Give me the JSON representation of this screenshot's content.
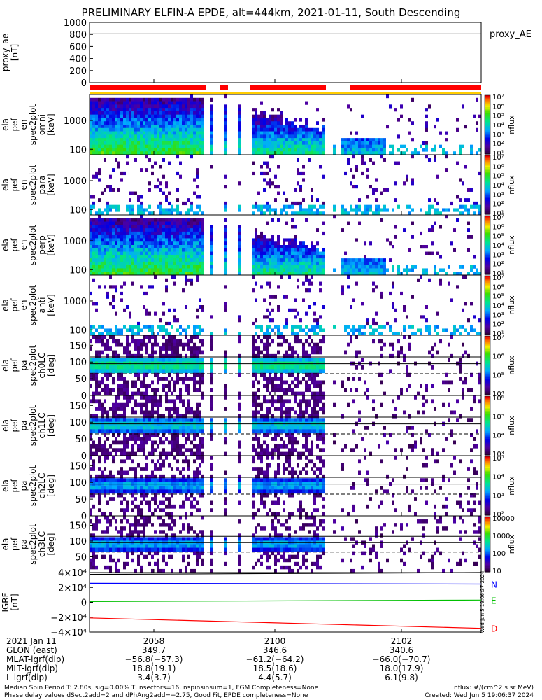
{
  "title": "PRELIMINARY ELFIN-A EPDE, alt=444km, 2021-01-11, South Descending",
  "chart_data": [
    {
      "type": "line",
      "name": "proxy_ae",
      "ylabel": "proxy_ae [nT]",
      "yticks": [
        "1000",
        "800",
        "600",
        "400",
        "200",
        "0"
      ],
      "ylim": [
        0,
        1000
      ],
      "legend": "proxy_AE",
      "series": [
        {
          "name": "proxy_AE",
          "values": [
            810,
            810
          ]
        }
      ]
    },
    {
      "type": "heatmap",
      "name": "omni-energy",
      "ylabel": [
        "ela",
        "pef",
        "en",
        "spec2plot",
        "omni",
        "[keV]"
      ],
      "yticks": [
        "1000",
        "100"
      ],
      "cbar_label": "nflux",
      "cbar_ticks": [
        "10⁷",
        "10⁶",
        "10⁵",
        "10⁴",
        "10³",
        "10²",
        "10¹"
      ]
    },
    {
      "type": "heatmap",
      "name": "para-energy",
      "ylabel": [
        "ela",
        "pef",
        "en",
        "spec2plot",
        "para",
        "[keV]"
      ],
      "yticks": [
        "1000",
        "100"
      ],
      "cbar_label": "nflux",
      "cbar_ticks": [
        "10⁷",
        "10⁶",
        "10⁵",
        "10⁴",
        "10³",
        "10²",
        "10¹"
      ]
    },
    {
      "type": "heatmap",
      "name": "perp-energy",
      "ylabel": [
        "ela",
        "pef",
        "en",
        "spec2plot",
        "perp",
        "[keV]"
      ],
      "yticks": [
        "1000",
        "100"
      ],
      "cbar_label": "nflux",
      "cbar_ticks": [
        "10⁷",
        "10⁶",
        "10⁵",
        "10⁴",
        "10³",
        "10²",
        "10¹"
      ]
    },
    {
      "type": "heatmap",
      "name": "anti-energy",
      "ylabel": [
        "ela",
        "pef",
        "en",
        "spec2plot",
        "anti",
        "[keV]"
      ],
      "yticks": [
        "1000",
        "100"
      ],
      "cbar_label": "nflux",
      "cbar_ticks": [
        "10⁷",
        "10⁶",
        "10⁵",
        "10⁴",
        "10³",
        "10²",
        "10¹"
      ]
    },
    {
      "type": "heatmap",
      "name": "ch0LC",
      "ylabel": [
        "ela",
        "pef",
        "pa",
        "spec2plot",
        "ch0LC",
        "[deg]"
      ],
      "yticks": [
        "150",
        "100",
        "50",
        "0"
      ],
      "ylim": [
        0,
        180
      ],
      "cbar_label": "nflux",
      "cbar_ticks": [
        "10⁷",
        "10⁶",
        "10⁵",
        "10⁴"
      ]
    },
    {
      "type": "heatmap",
      "name": "ch1LC",
      "ylabel": [
        "ela",
        "pef",
        "pa",
        "spec2plot",
        "ch1LC",
        "[deg]"
      ],
      "yticks": [
        "150",
        "100",
        "50",
        "0"
      ],
      "ylim": [
        0,
        180
      ],
      "cbar_label": "nflux",
      "cbar_ticks": [
        "10⁶",
        "10⁵",
        "10⁴",
        "10³"
      ]
    },
    {
      "type": "heatmap",
      "name": "ch2LC",
      "ylabel": [
        "ela",
        "pef",
        "pa",
        "spec2plot",
        "ch2LC",
        "[deg]"
      ],
      "yticks": [
        "150",
        "100",
        "50",
        "0"
      ],
      "ylim": [
        0,
        180
      ],
      "cbar_label": "nflux",
      "cbar_ticks": [
        "10⁵",
        "10⁴",
        "10³",
        "10²"
      ]
    },
    {
      "type": "heatmap",
      "name": "ch3LC",
      "ylabel": [
        "ela",
        "pef",
        "pa",
        "spec2plot",
        "ch3LC",
        "[deg]"
      ],
      "yticks": [
        "150",
        "100",
        "50"
      ],
      "ylim": [
        0,
        180
      ],
      "cbar_label": "nflux",
      "cbar_ticks": [
        "10000",
        "1000",
        "100",
        "10"
      ]
    },
    {
      "type": "line",
      "name": "IGRF",
      "ylabel": [
        "IGRF",
        "[nT]"
      ],
      "yticks": [
        "4×10⁴",
        "2×10⁴",
        "0",
        "−2×10⁴",
        "−4×10⁴"
      ],
      "ylim": [
        -40000,
        40000
      ],
      "series": [
        {
          "name": "",
          "values": [
            37500,
            40000
          ],
          "color": "#000000"
        },
        {
          "name": "N",
          "values": [
            25500,
            24500
          ],
          "color": "#0000ff"
        },
        {
          "name": "E",
          "values": [
            1000,
            3000
          ],
          "color": "#00c000"
        },
        {
          "name": "D",
          "values": [
            -21000,
            -35000
          ],
          "color": "#ff0000"
        }
      ]
    }
  ],
  "xaxis": {
    "row_labels": [
      "2021 Jan 11",
      "GLON (east)",
      "MLAT-igrf(dip)",
      "MLT-igrf(dip)",
      "L-igrf(dip)"
    ],
    "columns": [
      {
        "time": "2058",
        "glon": "349.7",
        "mlat": "−56.8(−57.3)",
        "mlt": "18.8(19.1)",
        "l": "3.4(3.7)"
      },
      {
        "time": "2100",
        "glon": "346.6",
        "mlat": "−61.2(−64.2)",
        "mlt": "18.5(18.6)",
        "l": "4.4(5.7)"
      },
      {
        "time": "2102",
        "glon": "340.6",
        "mlat": "−66.0(−70.7)",
        "mlt": "18.0(17.9)",
        "l": "6.1(9.8)"
      }
    ]
  },
  "footer": {
    "line1": "Median Spin Period T: 2.80s, sig=0.00% T, nsectors=16, nspinsinsum=1, FGM Completeness=None",
    "line2": "Phase delay values dSect2add=2 and dPhAng2add=−2.75, Good Fit, EPDE completeness=None",
    "units": "nflux: #/(cm^2 s sr MeV)",
    "created": "Created: Wed Jun  5 19:06:37 2024",
    "side_stamp": "Wed Jun  5 19:06:37 2024"
  }
}
